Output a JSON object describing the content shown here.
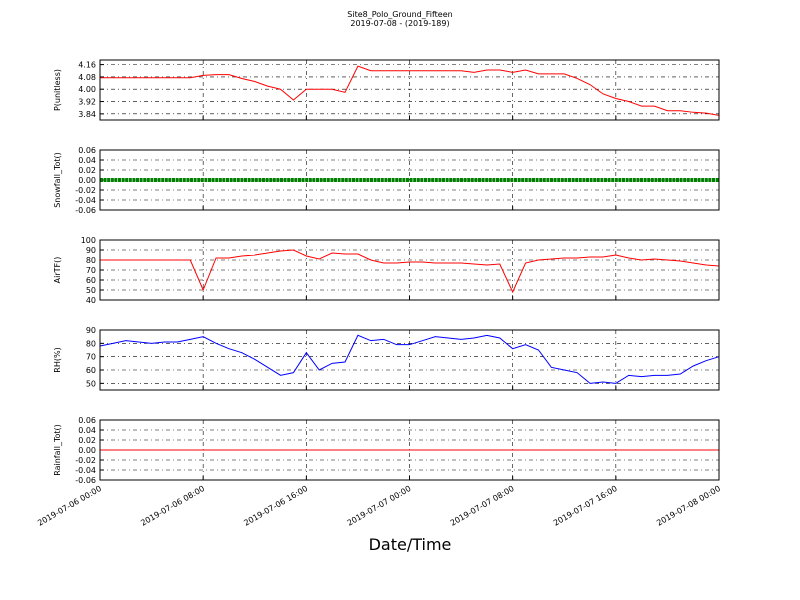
{
  "title": "Site8_Polo_Ground_Fifteen",
  "subtitle": "2019-07-08 - (2019-189)",
  "xlabel": "Date/Time",
  "chart_data": [
    {
      "type": "line",
      "ylabel": "P(unitless)",
      "x": [
        "2019-07-06 00:00",
        "2019-07-06 01:00",
        "2019-07-06 02:00",
        "2019-07-06 03:00",
        "2019-07-06 04:00",
        "2019-07-06 05:00",
        "2019-07-06 06:00",
        "2019-07-06 07:00",
        "2019-07-06 08:00",
        "2019-07-06 09:00",
        "2019-07-06 10:00",
        "2019-07-06 11:00",
        "2019-07-06 12:00",
        "2019-07-06 13:00",
        "2019-07-06 14:00",
        "2019-07-06 15:00",
        "2019-07-06 16:00",
        "2019-07-06 17:00",
        "2019-07-06 18:00",
        "2019-07-06 19:00",
        "2019-07-06 20:00",
        "2019-07-06 21:00",
        "2019-07-06 22:00",
        "2019-07-06 23:00",
        "2019-07-07 00:00",
        "2019-07-07 01:00",
        "2019-07-07 02:00",
        "2019-07-07 03:00",
        "2019-07-07 04:00",
        "2019-07-07 05:00",
        "2019-07-07 06:00",
        "2019-07-07 07:00",
        "2019-07-07 08:00",
        "2019-07-07 09:00",
        "2019-07-07 10:00",
        "2019-07-07 11:00",
        "2019-07-07 12:00",
        "2019-07-07 13:00",
        "2019-07-07 14:00",
        "2019-07-07 15:00",
        "2019-07-07 16:00",
        "2019-07-07 17:00",
        "2019-07-07 18:00",
        "2019-07-07 19:00",
        "2019-07-07 20:00",
        "2019-07-07 21:00",
        "2019-07-07 22:00",
        "2019-07-07 23:00",
        "2019-07-08 00:00"
      ],
      "series": [
        {
          "color": "#ff0000",
          "values": [
            4.075,
            4.075,
            4.075,
            4.075,
            4.075,
            4.075,
            4.075,
            4.075,
            4.09,
            4.095,
            4.095,
            4.07,
            4.05,
            4.02,
            4.0,
            3.93,
            4.0,
            4.0,
            4.0,
            3.98,
            4.15,
            4.12,
            4.12,
            4.12,
            4.12,
            4.12,
            4.12,
            4.12,
            4.12,
            4.11,
            4.125,
            4.125,
            4.11,
            4.125,
            4.1,
            4.1,
            4.1,
            4.07,
            4.03,
            3.97,
            3.94,
            3.92,
            3.89,
            3.89,
            3.86,
            3.86,
            3.85,
            3.845,
            3.83
          ]
        }
      ],
      "xlim": [
        "2019-07-06 00:00",
        "2019-07-08 00:00"
      ],
      "xticks": [
        "2019-07-06 00:00",
        "2019-07-06 08:00",
        "2019-07-06 16:00",
        "2019-07-07 00:00",
        "2019-07-07 08:00",
        "2019-07-07 16:00",
        "2019-07-08 00:00"
      ],
      "ylim": [
        3.8,
        4.19
      ],
      "yticks": [
        3.84,
        3.92,
        {
          "value": 4,
          "label": "4.00"
        },
        4.08,
        4.16
      ],
      "grid": true
    },
    {
      "type": "line",
      "ylabel": "Snowfall_Tot()",
      "x": [
        "2019-07-06 00:00",
        "2019-07-06 01:00",
        "2019-07-06 02:00",
        "2019-07-06 03:00",
        "2019-07-06 04:00",
        "2019-07-06 05:00",
        "2019-07-06 06:00",
        "2019-07-06 07:00",
        "2019-07-06 08:00",
        "2019-07-06 09:00",
        "2019-07-06 10:00",
        "2019-07-06 11:00",
        "2019-07-06 12:00",
        "2019-07-06 13:00",
        "2019-07-06 14:00",
        "2019-07-06 15:00",
        "2019-07-06 16:00",
        "2019-07-06 17:00",
        "2019-07-06 18:00",
        "2019-07-06 19:00",
        "2019-07-06 20:00",
        "2019-07-06 21:00",
        "2019-07-06 22:00",
        "2019-07-06 23:00",
        "2019-07-07 00:00",
        "2019-07-07 01:00",
        "2019-07-07 02:00",
        "2019-07-07 03:00",
        "2019-07-07 04:00",
        "2019-07-07 05:00",
        "2019-07-07 06:00",
        "2019-07-07 07:00",
        "2019-07-07 08:00",
        "2019-07-07 09:00",
        "2019-07-07 10:00",
        "2019-07-07 11:00",
        "2019-07-07 12:00",
        "2019-07-07 13:00",
        "2019-07-07 14:00",
        "2019-07-07 15:00",
        "2019-07-07 16:00",
        "2019-07-07 17:00",
        "2019-07-07 18:00",
        "2019-07-07 19:00",
        "2019-07-07 20:00",
        "2019-07-07 21:00",
        "2019-07-07 22:00",
        "2019-07-07 23:00",
        "2019-07-08 00:00"
      ],
      "series": [
        {
          "color": "#008000",
          "markers": true,
          "values": [
            0,
            0,
            0,
            0,
            0,
            0,
            0,
            0,
            0,
            0,
            0,
            0,
            0,
            0,
            0,
            0,
            0,
            0,
            0,
            0,
            0,
            0,
            0,
            0,
            0,
            0,
            0,
            0,
            0,
            0,
            0,
            0,
            0,
            0,
            0,
            0,
            0,
            0,
            0,
            0,
            0,
            0,
            0,
            0,
            0,
            0,
            0,
            0,
            0
          ]
        }
      ],
      "xlim": [
        "2019-07-06 00:00",
        "2019-07-08 00:00"
      ],
      "xticks": [
        "2019-07-06 00:00",
        "2019-07-06 08:00",
        "2019-07-06 16:00",
        "2019-07-07 00:00",
        "2019-07-07 08:00",
        "2019-07-07 16:00",
        "2019-07-08 00:00"
      ],
      "ylim": [
        -0.06,
        0.06
      ],
      "yticks": [
        -0.06,
        -0.04,
        -0.02,
        {
          "value": 0,
          "label": "0.00"
        },
        0.02,
        0.04,
        0.06
      ],
      "grid": true
    },
    {
      "type": "line",
      "ylabel": "AirTF()",
      "x": [
        "2019-07-06 00:00",
        "2019-07-06 01:00",
        "2019-07-06 02:00",
        "2019-07-06 03:00",
        "2019-07-06 04:00",
        "2019-07-06 05:00",
        "2019-07-06 06:00",
        "2019-07-06 07:00",
        "2019-07-06 08:00",
        "2019-07-06 09:00",
        "2019-07-06 10:00",
        "2019-07-06 11:00",
        "2019-07-06 12:00",
        "2019-07-06 13:00",
        "2019-07-06 14:00",
        "2019-07-06 15:00",
        "2019-07-06 16:00",
        "2019-07-06 17:00",
        "2019-07-06 18:00",
        "2019-07-06 19:00",
        "2019-07-06 20:00",
        "2019-07-06 21:00",
        "2019-07-06 22:00",
        "2019-07-06 23:00",
        "2019-07-07 00:00",
        "2019-07-07 01:00",
        "2019-07-07 02:00",
        "2019-07-07 03:00",
        "2019-07-07 04:00",
        "2019-07-07 05:00",
        "2019-07-07 06:00",
        "2019-07-07 07:00",
        "2019-07-07 08:00",
        "2019-07-07 09:00",
        "2019-07-07 10:00",
        "2019-07-07 11:00",
        "2019-07-07 12:00",
        "2019-07-07 13:00",
        "2019-07-07 14:00",
        "2019-07-07 15:00",
        "2019-07-07 16:00",
        "2019-07-07 17:00",
        "2019-07-07 18:00",
        "2019-07-07 19:00",
        "2019-07-07 20:00",
        "2019-07-07 21:00",
        "2019-07-07 22:00",
        "2019-07-07 23:00",
        "2019-07-08 00:00"
      ],
      "series": [
        {
          "color": "#ff0000",
          "values": [
            80,
            80,
            80,
            80,
            80,
            80,
            80,
            80,
            50,
            82,
            82,
            84,
            85,
            87,
            89,
            90,
            84,
            81,
            87,
            86,
            86,
            80,
            77,
            77,
            78,
            78,
            77,
            77,
            77,
            76,
            75,
            76,
            48,
            77,
            80,
            81,
            82,
            82,
            83,
            83,
            85,
            82,
            80,
            81,
            80,
            79,
            77,
            75,
            74
          ]
        }
      ],
      "xlim": [
        "2019-07-06 00:00",
        "2019-07-08 00:00"
      ],
      "xticks": [
        "2019-07-06 00:00",
        "2019-07-06 08:00",
        "2019-07-06 16:00",
        "2019-07-07 00:00",
        "2019-07-07 08:00",
        "2019-07-07 16:00",
        "2019-07-08 00:00"
      ],
      "ylim": [
        40,
        100
      ],
      "yticks": [
        40,
        50,
        60,
        70,
        80,
        90,
        100
      ],
      "grid": true
    },
    {
      "type": "line",
      "ylabel": "RH(%)",
      "x": [
        "2019-07-06 00:00",
        "2019-07-06 01:00",
        "2019-07-06 02:00",
        "2019-07-06 03:00",
        "2019-07-06 04:00",
        "2019-07-06 05:00",
        "2019-07-06 06:00",
        "2019-07-06 07:00",
        "2019-07-06 08:00",
        "2019-07-06 09:00",
        "2019-07-06 10:00",
        "2019-07-06 11:00",
        "2019-07-06 12:00",
        "2019-07-06 13:00",
        "2019-07-06 14:00",
        "2019-07-06 15:00",
        "2019-07-06 16:00",
        "2019-07-06 17:00",
        "2019-07-06 18:00",
        "2019-07-06 19:00",
        "2019-07-06 20:00",
        "2019-07-06 21:00",
        "2019-07-06 22:00",
        "2019-07-06 23:00",
        "2019-07-07 00:00",
        "2019-07-07 01:00",
        "2019-07-07 02:00",
        "2019-07-07 03:00",
        "2019-07-07 04:00",
        "2019-07-07 05:00",
        "2019-07-07 06:00",
        "2019-07-07 07:00",
        "2019-07-07 08:00",
        "2019-07-07 09:00",
        "2019-07-07 10:00",
        "2019-07-07 11:00",
        "2019-07-07 12:00",
        "2019-07-07 13:00",
        "2019-07-07 14:00",
        "2019-07-07 15:00",
        "2019-07-07 16:00",
        "2019-07-07 17:00",
        "2019-07-07 18:00",
        "2019-07-07 19:00",
        "2019-07-07 20:00",
        "2019-07-07 21:00",
        "2019-07-07 22:00",
        "2019-07-07 23:00",
        "2019-07-08 00:00"
      ],
      "series": [
        {
          "color": "#0000ff",
          "values": [
            78,
            80,
            82,
            81,
            80,
            81,
            81,
            83,
            85,
            80,
            76,
            73,
            68,
            62,
            56,
            58,
            73,
            60,
            65,
            66,
            86,
            82,
            83,
            79,
            79,
            82,
            85,
            84,
            83,
            84,
            86,
            84,
            76,
            79,
            75,
            62,
            60,
            58,
            50,
            51,
            50,
            56,
            55,
            56,
            56,
            57,
            63,
            67,
            70
          ]
        }
      ],
      "xlim": [
        "2019-07-06 00:00",
        "2019-07-08 00:00"
      ],
      "xticks": [
        "2019-07-06 00:00",
        "2019-07-06 08:00",
        "2019-07-06 16:00",
        "2019-07-07 00:00",
        "2019-07-07 08:00",
        "2019-07-07 16:00",
        "2019-07-08 00:00"
      ],
      "ylim": [
        45,
        90
      ],
      "yticks": [
        50,
        60,
        70,
        80,
        90
      ],
      "grid": true
    },
    {
      "type": "line",
      "ylabel": "Rainfall_Tot()",
      "x": [
        "2019-07-06 00:00",
        "2019-07-06 01:00",
        "2019-07-06 02:00",
        "2019-07-06 03:00",
        "2019-07-06 04:00",
        "2019-07-06 05:00",
        "2019-07-06 06:00",
        "2019-07-06 07:00",
        "2019-07-06 08:00",
        "2019-07-06 09:00",
        "2019-07-06 10:00",
        "2019-07-06 11:00",
        "2019-07-06 12:00",
        "2019-07-06 13:00",
        "2019-07-06 14:00",
        "2019-07-06 15:00",
        "2019-07-06 16:00",
        "2019-07-06 17:00",
        "2019-07-06 18:00",
        "2019-07-06 19:00",
        "2019-07-06 20:00",
        "2019-07-06 21:00",
        "2019-07-06 22:00",
        "2019-07-06 23:00",
        "2019-07-07 00:00",
        "2019-07-07 01:00",
        "2019-07-07 02:00",
        "2019-07-07 03:00",
        "2019-07-07 04:00",
        "2019-07-07 05:00",
        "2019-07-07 06:00",
        "2019-07-07 07:00",
        "2019-07-07 08:00",
        "2019-07-07 09:00",
        "2019-07-07 10:00",
        "2019-07-07 11:00",
        "2019-07-07 12:00",
        "2019-07-07 13:00",
        "2019-07-07 14:00",
        "2019-07-07 15:00",
        "2019-07-07 16:00",
        "2019-07-07 17:00",
        "2019-07-07 18:00",
        "2019-07-07 19:00",
        "2019-07-07 20:00",
        "2019-07-07 21:00",
        "2019-07-07 22:00",
        "2019-07-07 23:00",
        "2019-07-08 00:00"
      ],
      "series": [
        {
          "color": "#ff0000",
          "values": [
            0,
            0,
            0,
            0,
            0,
            0,
            0,
            0,
            0,
            0,
            0,
            0,
            0,
            0,
            0,
            0,
            0,
            0,
            0,
            0,
            0,
            0,
            0,
            0,
            0,
            0,
            0,
            0,
            0,
            0,
            0,
            0,
            0,
            0,
            0,
            0,
            0,
            0,
            0,
            0,
            0,
            0,
            0,
            0,
            0,
            0,
            0,
            0,
            0
          ]
        }
      ],
      "xlim": [
        "2019-07-06 00:00",
        "2019-07-08 00:00"
      ],
      "xticks": [
        "2019-07-06 00:00",
        "2019-07-06 08:00",
        "2019-07-06 16:00",
        "2019-07-07 00:00",
        "2019-07-07 08:00",
        "2019-07-07 16:00",
        "2019-07-08 00:00"
      ],
      "ylim": [
        -0.06,
        0.06
      ],
      "yticks": [
        -0.06,
        -0.04,
        -0.02,
        {
          "value": 0,
          "label": "0.00"
        },
        0.02,
        0.04,
        0.06
      ],
      "grid": true
    }
  ]
}
